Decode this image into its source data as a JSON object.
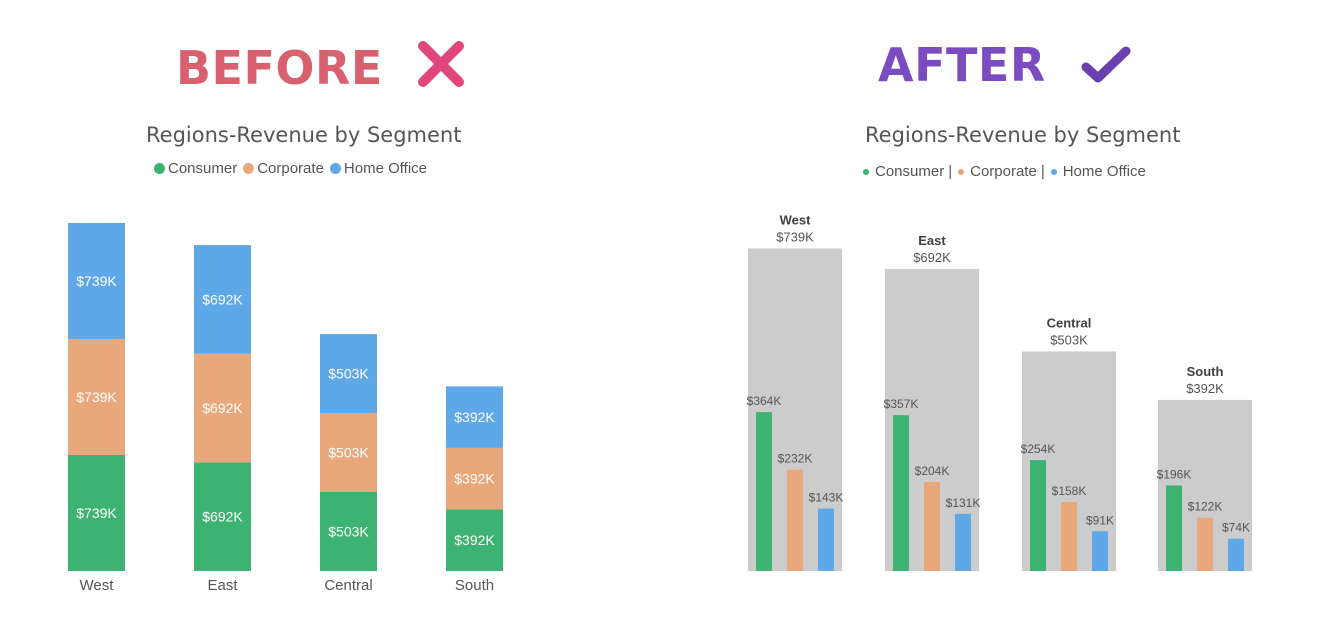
{
  "before_label": "BEFORE",
  "after_label": "AFTER",
  "icons": {
    "before": "cross-mark-icon",
    "after": "check-mark-icon"
  },
  "colors": {
    "consumer": "#3cb371",
    "corporate": "#e8a87c",
    "home_office": "#5fa8e8",
    "before_heading": "#d9616f",
    "after_heading": "#7b4cc0",
    "group_background": "#cccccc"
  },
  "before_chart": {
    "title": "Regions-Revenue by Segment",
    "legend": [
      "Consumer",
      "Corporate",
      "Home Office"
    ]
  },
  "after_chart": {
    "title": "Regions-Revenue by Segment",
    "legend": [
      "Consumer",
      "Corporate",
      "Home Office"
    ],
    "legend_separator": "|"
  },
  "chart_data": [
    {
      "type": "bar",
      "stacked": true,
      "title": "Regions-Revenue by Segment",
      "categories": [
        "West",
        "East",
        "Central",
        "South"
      ],
      "series": [
        {
          "name": "Consumer",
          "values": [
            739,
            692,
            503,
            392
          ],
          "labels": [
            "$739K",
            "$692K",
            "$503K",
            "$392K"
          ]
        },
        {
          "name": "Corporate",
          "values": [
            739,
            692,
            503,
            392
          ],
          "labels": [
            "$739K",
            "$692K",
            "$503K",
            "$392K"
          ]
        },
        {
          "name": "Home Office",
          "values": [
            739,
            692,
            503,
            392
          ],
          "labels": [
            "$739K",
            "$692K",
            "$503K",
            "$392K"
          ]
        }
      ],
      "legend": "top",
      "grid": false
    },
    {
      "type": "bar",
      "stacked": false,
      "title": "Regions-Revenue by Segment",
      "categories": [
        "West",
        "East",
        "Central",
        "South"
      ],
      "totals": [
        739,
        692,
        503,
        392
      ],
      "total_labels": [
        "$739K",
        "$692K",
        "$503K",
        "$392K"
      ],
      "series": [
        {
          "name": "Consumer",
          "values": [
            364,
            357,
            254,
            196
          ],
          "labels": [
            "$364K",
            "$357K",
            "$254K",
            "$196K"
          ]
        },
        {
          "name": "Corporate",
          "values": [
            232,
            204,
            158,
            122
          ],
          "labels": [
            "$232K",
            "$204K",
            "$158K",
            "$122K"
          ]
        },
        {
          "name": "Home Office",
          "values": [
            143,
            131,
            91,
            74
          ],
          "labels": [
            "$143K",
            "$131K",
            "$91K",
            "$74K"
          ]
        }
      ],
      "legend": "top",
      "grid": false
    }
  ]
}
